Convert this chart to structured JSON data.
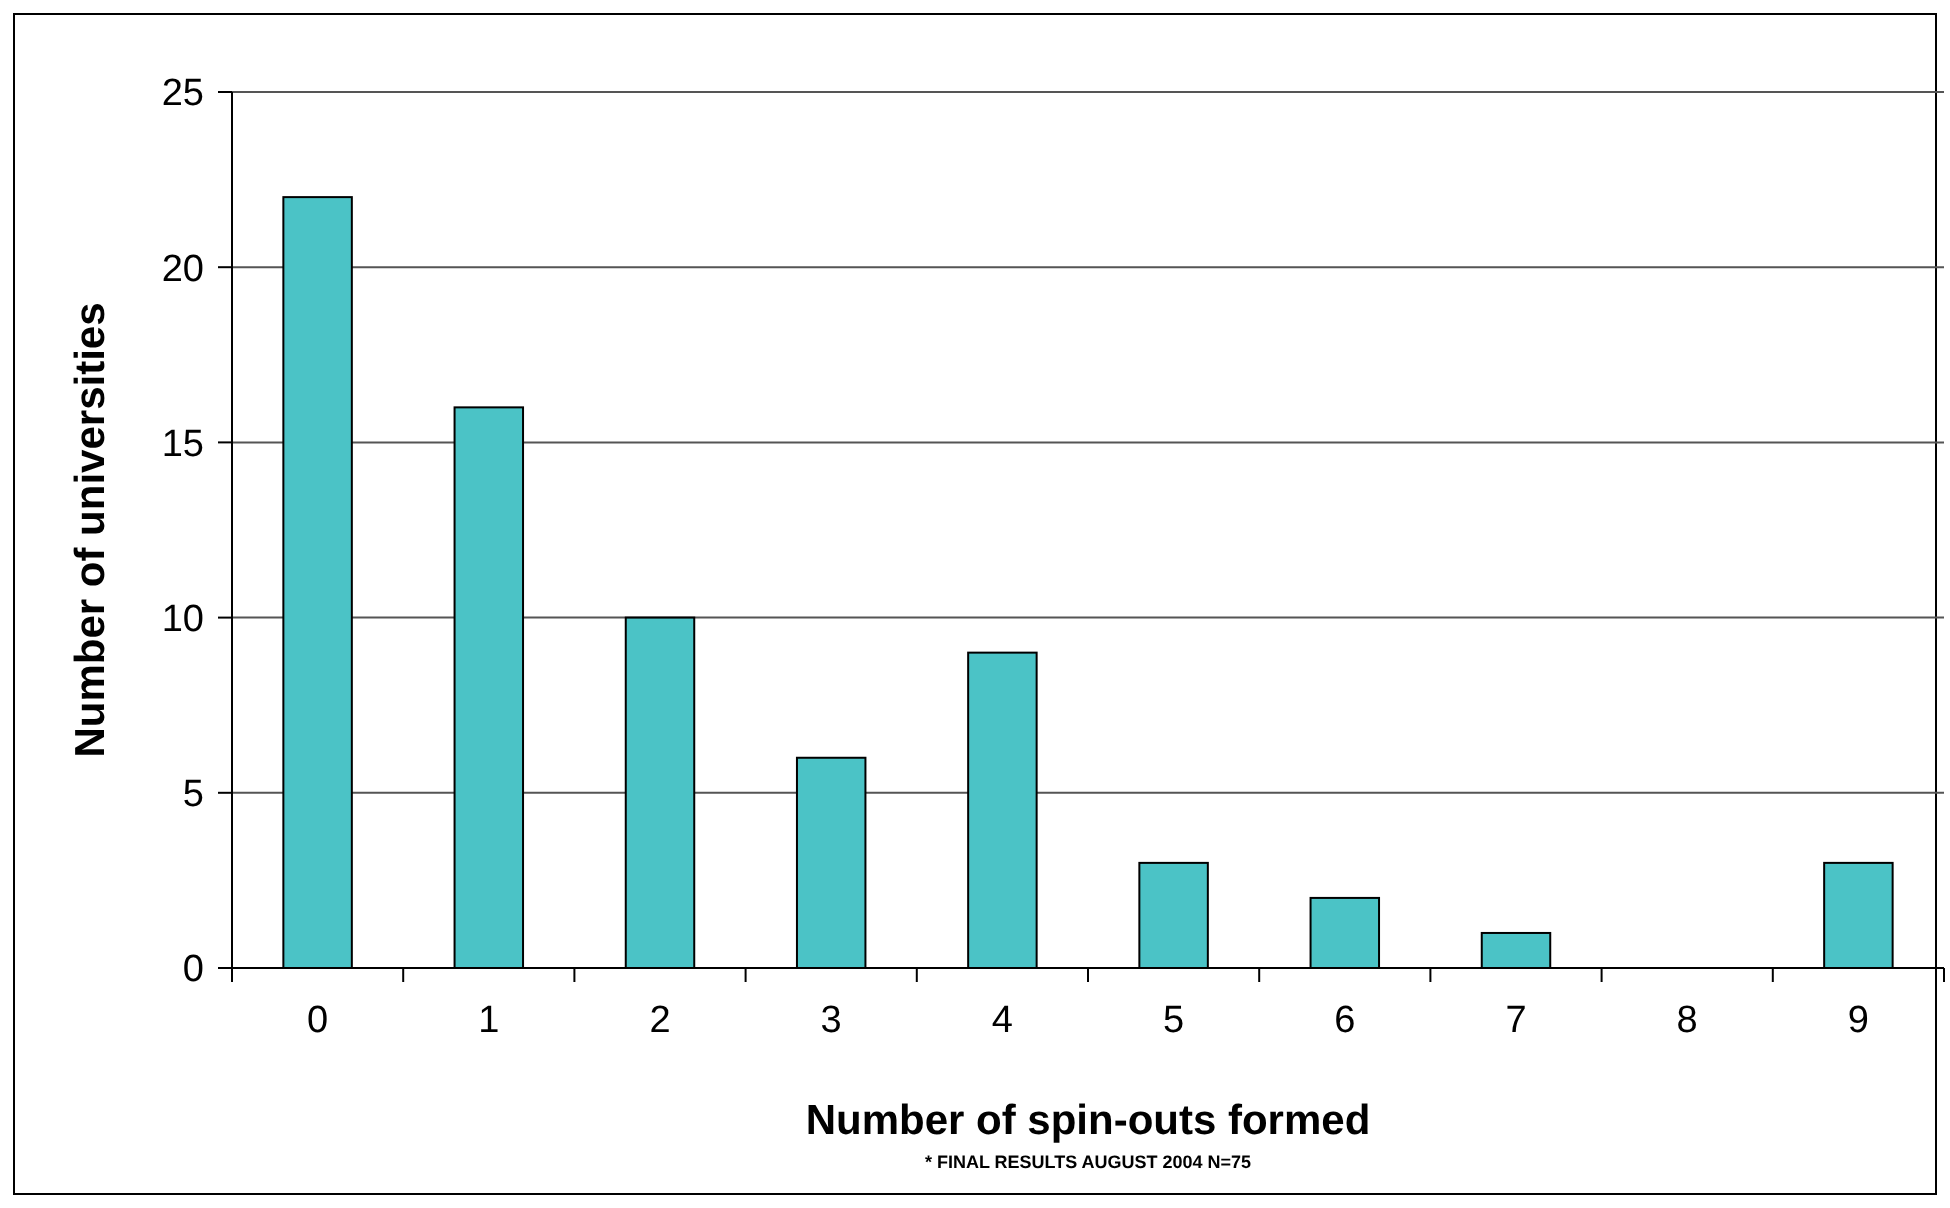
{
  "chart_data": {
    "type": "bar",
    "xlabel": "Number of spin-outs formed",
    "ylabel": "Number of universities",
    "categories": [
      "0",
      "1",
      "2",
      "3",
      "4",
      "5",
      "6",
      "7",
      "8",
      "9"
    ],
    "values": [
      22,
      16,
      10,
      6,
      9,
      3,
      2,
      1,
      0,
      3
    ],
    "color": "#4bc3c6",
    "ylim": [
      0,
      25
    ],
    "yticks": [
      0,
      5,
      10,
      15,
      20,
      25
    ],
    "grid": "y",
    "annotations": [
      "* FINAL RESULTS AUGUST 2004 N=75"
    ]
  }
}
